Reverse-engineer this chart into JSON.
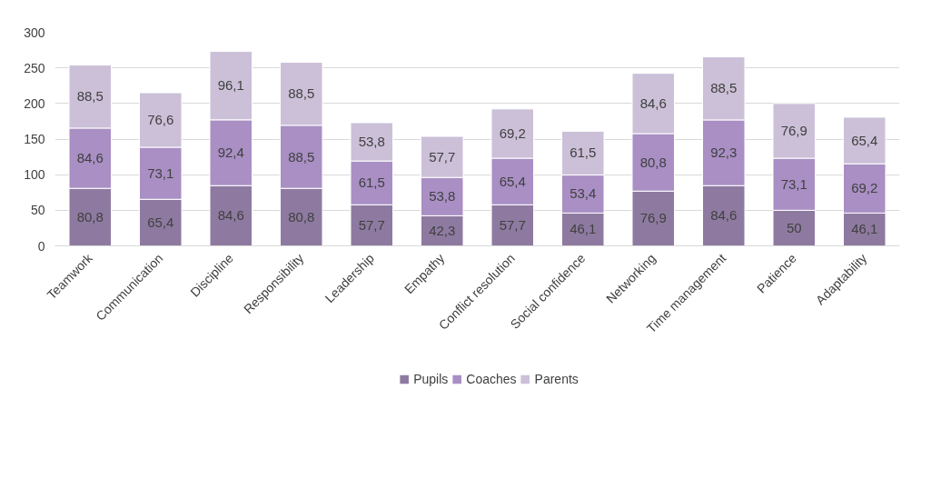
{
  "chart_data": {
    "type": "bar",
    "stacked": true,
    "grid": "y",
    "legend": "bottom",
    "categories": [
      "Teamwork",
      "Communication",
      "Discipline",
      "Responsibility",
      "Leadership",
      "Empathy",
      "Conflict resolution",
      "Social confidence",
      "Networking",
      "Time management",
      "Patience",
      "Adaptability"
    ],
    "ylim": [
      0,
      300
    ],
    "yticks": [
      0,
      50,
      100,
      150,
      200,
      250,
      300
    ],
    "series": [
      {
        "name": "Pupils",
        "color": "#8e7aa0",
        "values": [
          80.8,
          65.4,
          84.6,
          80.8,
          57.7,
          42.3,
          57.7,
          46.1,
          76.9,
          84.6,
          50,
          46.1
        ],
        "value_labels": [
          "80,8",
          "65,4",
          "84,6",
          "80,8",
          "57,7",
          "42,3",
          "57,7",
          "46,1",
          "76,9",
          "84,6",
          "50",
          "46,1"
        ]
      },
      {
        "name": "Coaches",
        "color": "#a98fc4",
        "values": [
          84.6,
          73.1,
          92.4,
          88.5,
          61.5,
          53.8,
          65.4,
          53.4,
          80.8,
          92.3,
          73.1,
          69.2
        ],
        "value_labels": [
          "84,6",
          "73,1",
          "92,4",
          "88,5",
          "61,5",
          "53,8",
          "65,4",
          "53,4",
          "80,8",
          "92,3",
          "73,1",
          "69,2"
        ]
      },
      {
        "name": "Parents",
        "color": "#cbc0d8",
        "values": [
          88.5,
          76.6,
          96.1,
          88.5,
          53.8,
          57.7,
          69.2,
          61.5,
          84.6,
          88.5,
          76.9,
          65.4
        ],
        "value_labels": [
          "88,5",
          "76,6",
          "96,1",
          "88,5",
          "53,8",
          "57,7",
          "69,2",
          "61,5",
          "84,6",
          "88,5",
          "76,9",
          "65,4"
        ]
      }
    ]
  }
}
